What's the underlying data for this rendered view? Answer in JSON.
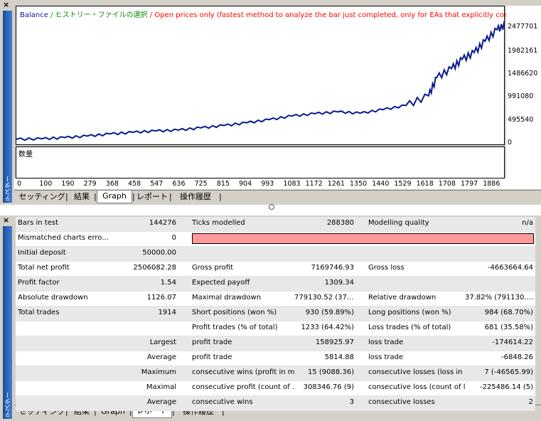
{
  "top_panel": {
    "close": "×",
    "side_label": "テスター",
    "legend": {
      "balance": "Balance",
      "history": " / ヒストリー・ファイルの選択",
      "mode": " / Open prices only (fastest method to analyze the bar just completed, only for EAs that explicitly control bar opening)"
    },
    "volume_label": "数量",
    "y_labels": [
      "2477701",
      "1982161",
      "1486620",
      "991080",
      "495540",
      "0"
    ],
    "x_labels": [
      "0",
      "100",
      "190",
      "279",
      "368",
      "458",
      "547",
      "636",
      "725",
      "815",
      "904",
      "993",
      "1083",
      "1172",
      "1261",
      "1350",
      "1440",
      "1529",
      "1618",
      "1708",
      "1797",
      "1886"
    ],
    "tabs": [
      "セッティング",
      "結果",
      "Graph",
      "レポート",
      "操作履歴"
    ],
    "active_tab": "Graph"
  },
  "bottom_panel": {
    "close": "×",
    "side_label": "テスター",
    "tabs": [
      "セッティング",
      "結果",
      "Graph",
      "レポート",
      "操作履歴"
    ],
    "active_tab": "レポート"
  },
  "report": {
    "rows": [
      [
        "Bars in test",
        "144276",
        "Ticks modelled",
        "288380",
        "Modelling quality",
        "n/a"
      ],
      [
        "Mismatched charts erro...",
        "0",
        "",
        "",
        "",
        ""
      ],
      [
        "Initial deposit",
        "50000.00",
        "",
        "",
        "",
        ""
      ],
      [
        "Total net profit",
        "2506082.28",
        "Gross profit",
        "7169746.93",
        "Gross loss",
        "-4663664.64"
      ],
      [
        "Profit factor",
        "1.54",
        "Expected payoff",
        "1309.34",
        "",
        ""
      ],
      [
        "Absolute drawdown",
        "1126.07",
        "Maximal drawdown",
        "779130.52 (37....",
        "Relative drawdown",
        "37.82% (791130...."
      ],
      [
        "Total trades",
        "1914",
        "Short positions (won %)",
        "930 (59.89%)",
        "Long positions (won %)",
        "984 (68.70%)"
      ],
      [
        "",
        "",
        "Profit trades (% of total)",
        "1233 (64.42%)",
        "Loss trades (% of total)",
        "681 (35.58%)"
      ],
      [
        "",
        "Largest",
        "profit trade",
        "158925.97",
        "loss trade",
        "-174614.22"
      ],
      [
        "",
        "Average",
        "profit trade",
        "5814.88",
        "loss trade",
        "-6848.26"
      ],
      [
        "",
        "Maximum",
        "consecutive wins (profit in m...",
        "15 (9088.36)",
        "consecutive losses (loss in ...",
        "7 (-46565.99)"
      ],
      [
        "",
        "Maximal",
        "consecutive profit (count of ...",
        "308346.76 (9)",
        "consecutive loss (count of l...",
        "-225486.14 (5)"
      ],
      [
        "",
        "Average",
        "consecutive wins",
        "3",
        "consecutive losses",
        "2"
      ]
    ]
  },
  "chart_data": {
    "type": "line",
    "title": "",
    "x": [
      0,
      100,
      190,
      279,
      368,
      458,
      547,
      636,
      725,
      815,
      904,
      993,
      1083,
      1172,
      1261,
      1350,
      1440,
      1529,
      1618,
      1650,
      1708,
      1750,
      1797,
      1840,
      1886,
      1920
    ],
    "series": [
      {
        "name": "Balance",
        "color": "#0a1a8c",
        "values": [
          50000,
          60000,
          85000,
          120000,
          165000,
          200000,
          230000,
          250000,
          300000,
          350000,
          410000,
          480000,
          560000,
          610000,
          650000,
          620000,
          700000,
          790000,
          1000000,
          1400000,
          1600000,
          1800000,
          1950000,
          2200000,
          2450000,
          2556000
        ]
      }
    ],
    "ylim": [
      0,
      2650000
    ],
    "xlim": [
      0,
      1914
    ],
    "grid": false
  }
}
